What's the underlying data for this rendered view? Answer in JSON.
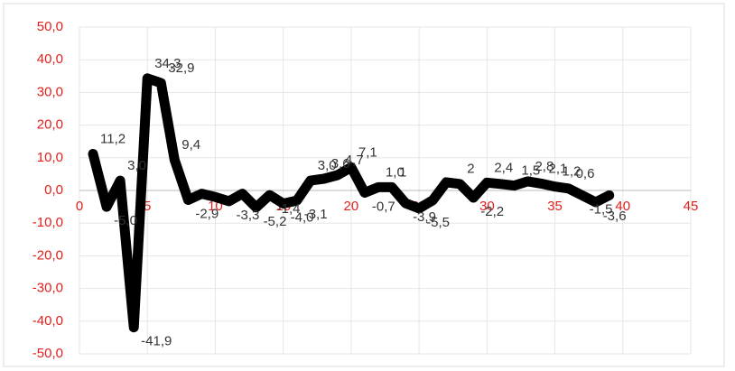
{
  "chart_data": {
    "type": "line",
    "x": [
      1,
      2,
      3,
      4,
      5,
      6,
      7,
      8,
      9,
      10,
      11,
      12,
      13,
      14,
      15,
      16,
      17,
      18,
      19,
      20,
      21,
      22,
      23,
      24,
      25,
      26,
      27,
      28,
      29,
      30,
      31,
      32,
      33,
      34,
      35,
      36,
      37,
      38,
      39
    ],
    "series": [
      {
        "color": "#000000",
        "values": [
          11.2,
          -5.0,
          3.0,
          -41.9,
          34.3,
          32.9,
          9.4,
          -2.9,
          -1.0,
          -2.0,
          -3.3,
          -1.0,
          -5.2,
          -1.4,
          -4.0,
          -3.1,
          3.0,
          3.6,
          4.7,
          7.1,
          -0.7,
          1.0,
          1.0,
          -3.9,
          -5.5,
          -3.0,
          2.5,
          2.0,
          -2.2,
          2.4,
          2.0,
          1.5,
          2.8,
          2.1,
          1.2,
          0.6,
          -1.5,
          -3.6,
          -1.5
        ],
        "value_labels": [
          "11,2",
          "-5,0",
          "3,0",
          "-41,9",
          "34,3",
          "32,9",
          "9,4",
          "-2,9",
          null,
          null,
          "-3,3",
          null,
          "-5,2",
          "-1,4",
          "-4,0",
          "-3,1",
          "3,0",
          "3,6",
          "4,7",
          "7,1",
          "-0,7",
          "1,0",
          "1",
          "-3,9",
          "-5,5",
          null,
          null,
          "2",
          "-2,2",
          "2,4",
          null,
          "1,5",
          "2,8",
          "2,1",
          "1,2",
          "0,6",
          "-1,5",
          "-3,6",
          null
        ]
      }
    ],
    "xlim": [
      0,
      45
    ],
    "xticks": [
      0,
      5,
      10,
      15,
      20,
      25,
      30,
      35,
      40,
      45
    ],
    "ylim": [
      -50,
      50
    ],
    "yticks": [
      {
        "value": -50,
        "label": "-50,0"
      },
      {
        "value": -40,
        "label": "-40,0"
      },
      {
        "value": -30,
        "label": "-30,0"
      },
      {
        "value": -20,
        "label": "-20,0"
      },
      {
        "value": -10,
        "label": "-10,0"
      },
      {
        "value": 0,
        "label": "0,0"
      },
      {
        "value": 10,
        "label": "10,0"
      },
      {
        "value": 20,
        "label": "20,0"
      },
      {
        "value": 30,
        "label": "30,0"
      },
      {
        "value": 40,
        "label": "40,0"
      },
      {
        "value": 50,
        "label": "50,0"
      }
    ],
    "grid": true,
    "tick_color": "#e0201c"
  }
}
